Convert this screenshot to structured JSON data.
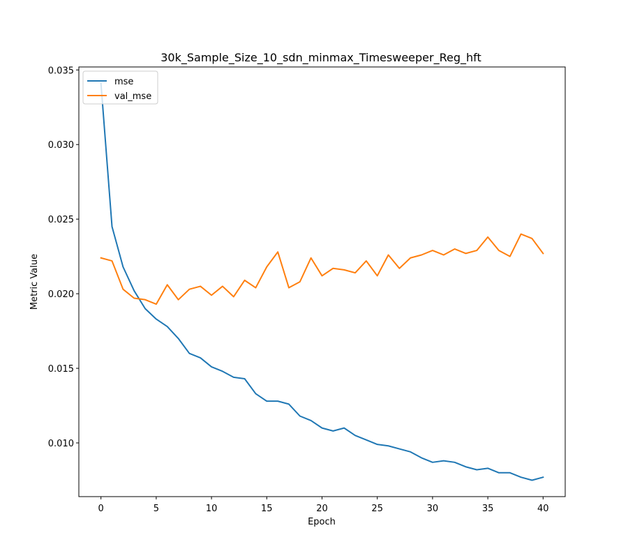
{
  "chart_data": {
    "type": "line",
    "title": "30k_Sample_Size_10_sdn_minmax_Timesweeper_Reg_hft",
    "xlabel": "Epoch",
    "ylabel": "Metric Value",
    "xlim": [
      -2,
      42
    ],
    "ylim": [
      0.0064,
      0.0352
    ],
    "xticks": [
      0,
      5,
      10,
      15,
      20,
      25,
      30,
      35,
      40
    ],
    "xtick_labels": [
      "0",
      "5",
      "10",
      "15",
      "20",
      "25",
      "30",
      "35",
      "40"
    ],
    "yticks": [
      0.01,
      0.015,
      0.02,
      0.025,
      0.03,
      0.035
    ],
    "ytick_labels": [
      "0.010",
      "0.015",
      "0.020",
      "0.025",
      "0.030",
      "0.035"
    ],
    "grid": false,
    "legend_position": "top-left",
    "x": [
      0,
      1,
      2,
      3,
      4,
      5,
      6,
      7,
      8,
      9,
      10,
      11,
      12,
      13,
      14,
      15,
      16,
      17,
      18,
      19,
      20,
      21,
      22,
      23,
      24,
      25,
      26,
      27,
      28,
      29,
      30,
      31,
      32,
      33,
      34,
      35,
      36,
      37,
      38,
      39,
      40
    ],
    "series": [
      {
        "name": "mse",
        "color": "#1f77b4",
        "values": [
          0.0341,
          0.0245,
          0.0218,
          0.0202,
          0.019,
          0.0183,
          0.0178,
          0.017,
          0.016,
          0.0157,
          0.0151,
          0.0148,
          0.0144,
          0.0143,
          0.0133,
          0.0128,
          0.0128,
          0.0126,
          0.0118,
          0.0115,
          0.011,
          0.0108,
          0.011,
          0.0105,
          0.0102,
          0.0099,
          0.0098,
          0.0096,
          0.0094,
          0.009,
          0.0087,
          0.0088,
          0.0087,
          0.0084,
          0.0082,
          0.0083,
          0.008,
          0.008,
          0.0077,
          0.0075,
          0.0077
        ]
      },
      {
        "name": "val_mse",
        "color": "#ff7f0e",
        "values": [
          0.0224,
          0.0222,
          0.0203,
          0.0197,
          0.0196,
          0.0193,
          0.0206,
          0.0196,
          0.0203,
          0.0205,
          0.0199,
          0.0205,
          0.0198,
          0.0209,
          0.0204,
          0.0218,
          0.0228,
          0.0204,
          0.0208,
          0.0224,
          0.0212,
          0.0217,
          0.0216,
          0.0214,
          0.0222,
          0.0212,
          0.0226,
          0.0217,
          0.0224,
          0.0226,
          0.0229,
          0.0226,
          0.023,
          0.0227,
          0.0229,
          0.0238,
          0.0229,
          0.0225,
          0.024,
          0.0237,
          0.0227
        ]
      }
    ]
  }
}
